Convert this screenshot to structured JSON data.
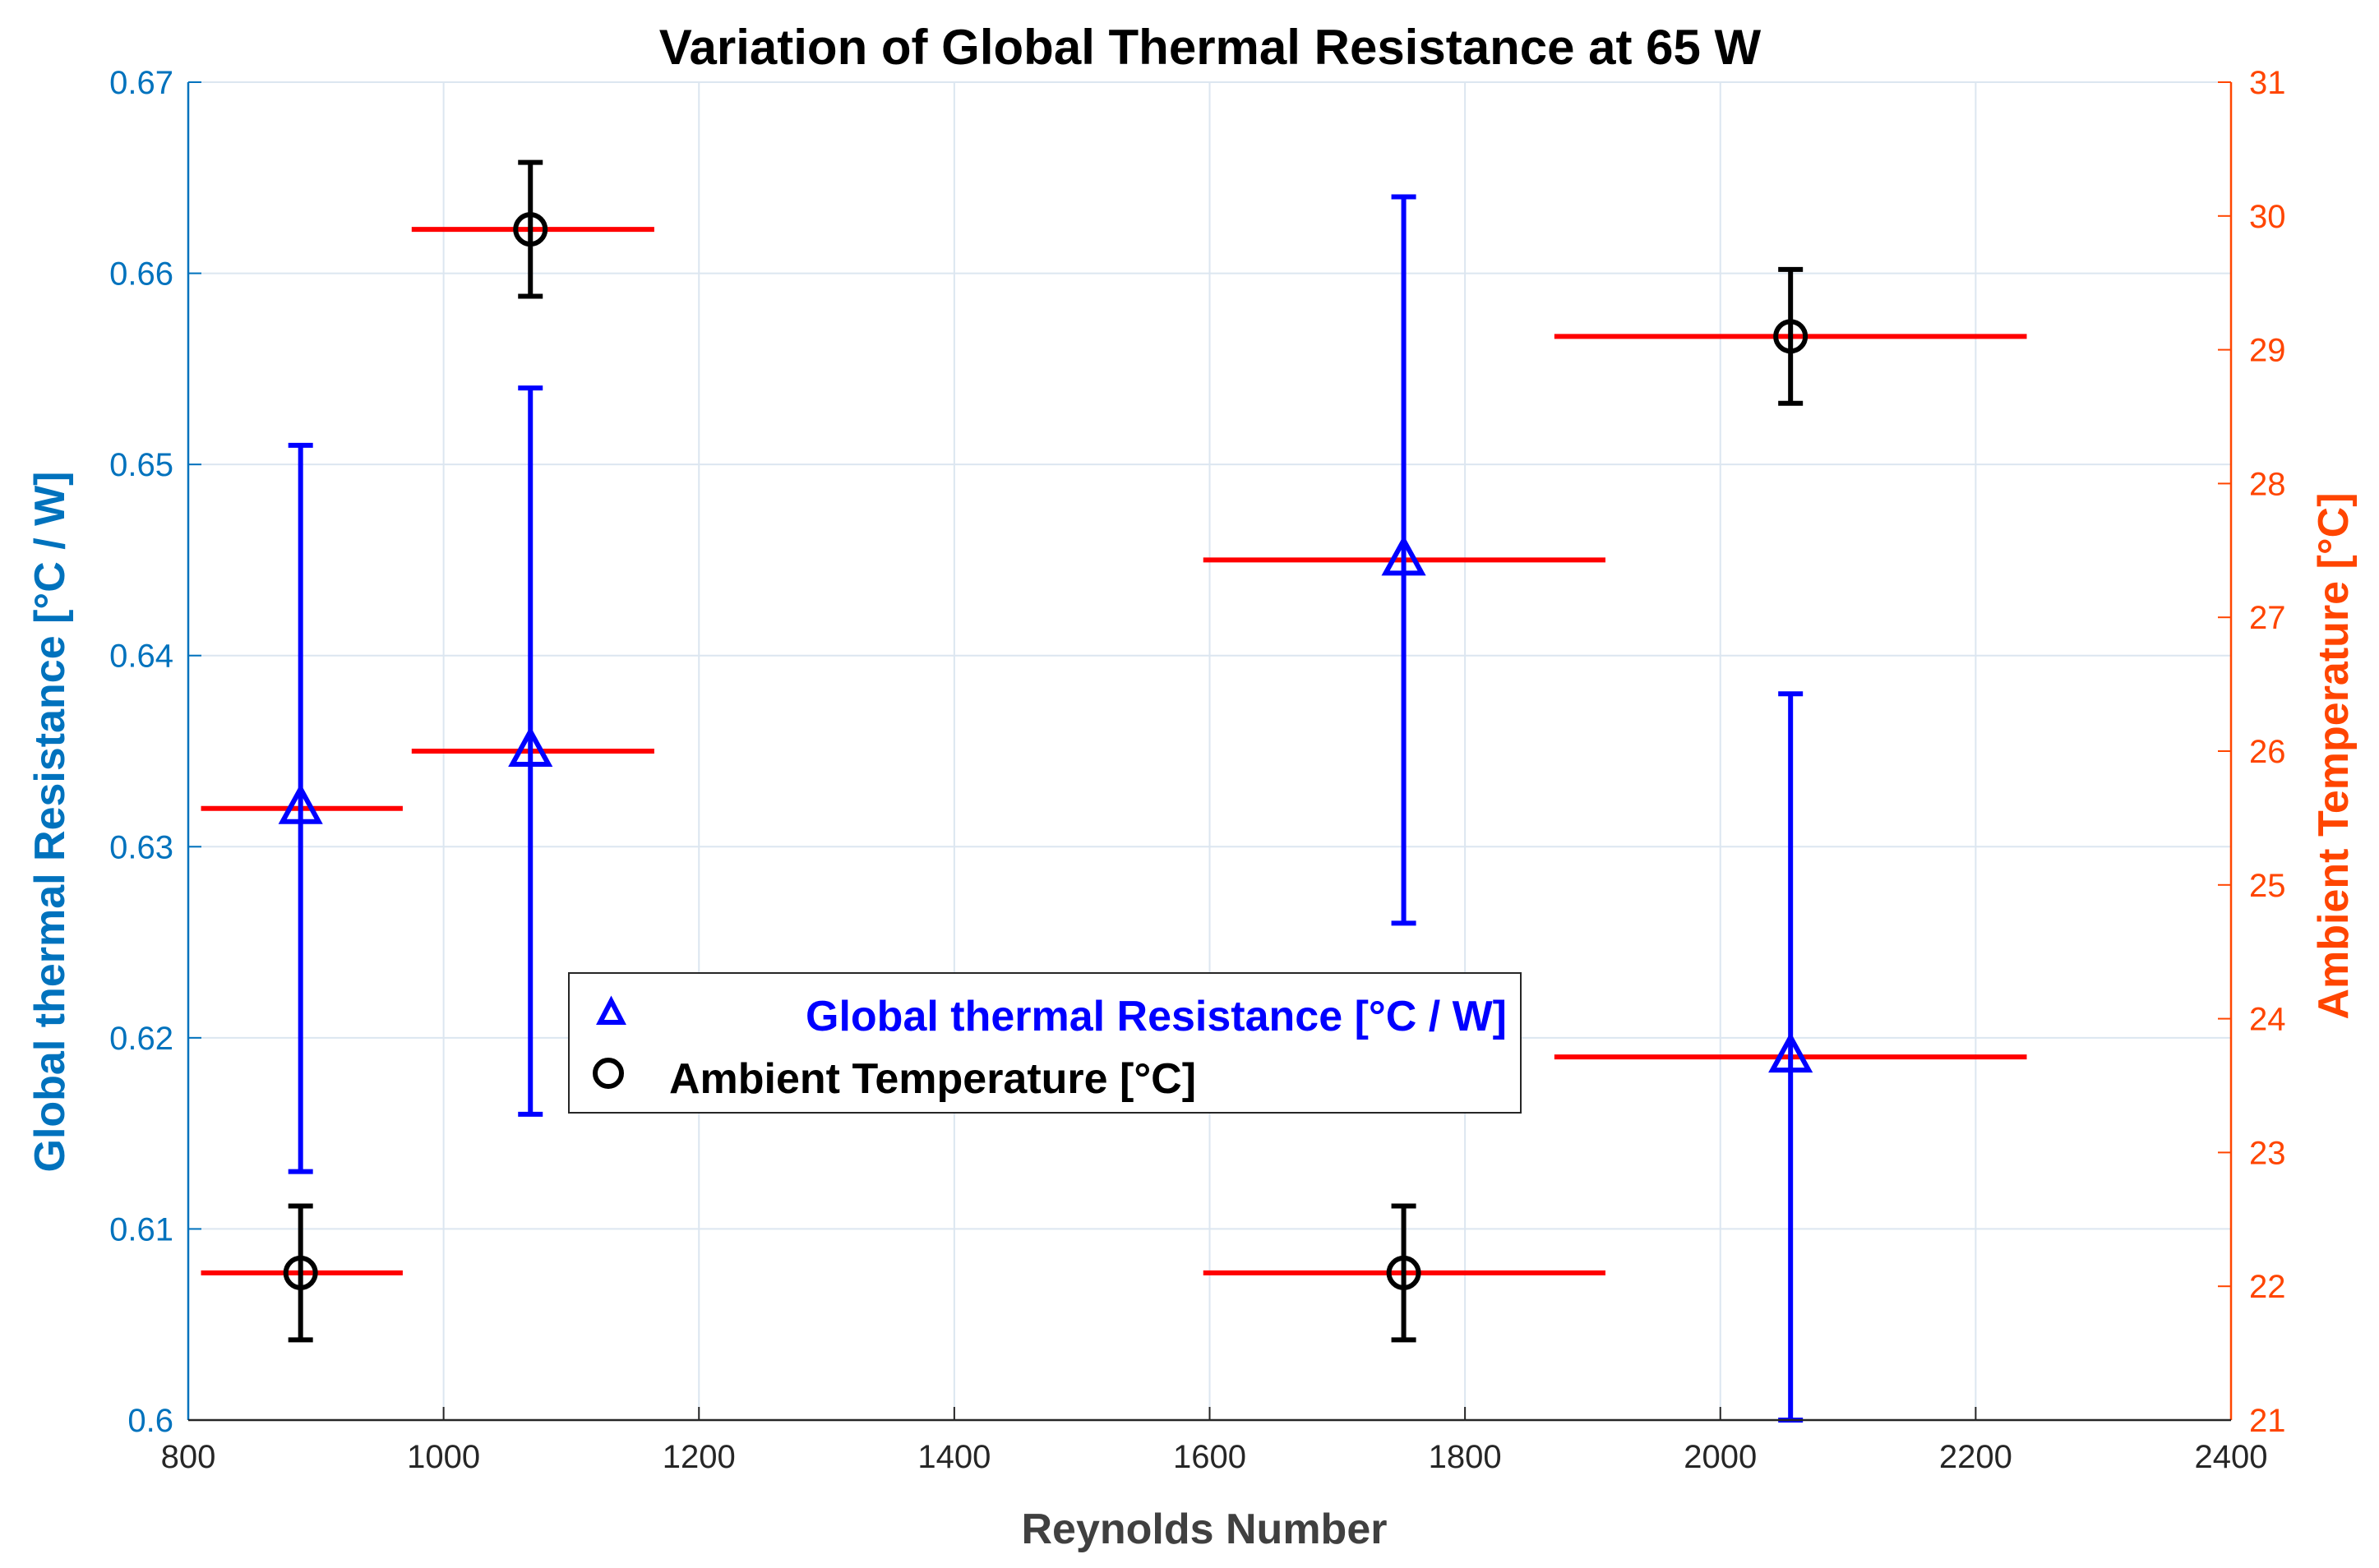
{
  "chart_data": {
    "type": "scatter",
    "title": "Variation of Global Thermal Resistance at 65 W",
    "xlabel": "Reynolds Number",
    "ylabel_left": "Global thermal Resistance [°C / W]",
    "ylabel_right": "Ambient Temperature [°C]",
    "xlim": [
      800,
      2400
    ],
    "ylim_left": [
      0.6,
      0.67
    ],
    "ylim_right": [
      21,
      31
    ],
    "x_ticks": [
      "800",
      "1000",
      "1200",
      "1400",
      "1600",
      "1800",
      "2000",
      "2200",
      "2400"
    ],
    "y_left_ticks": [
      "0.6",
      "0.61",
      "0.62",
      "0.63",
      "0.64",
      "0.65",
      "0.66",
      "0.67"
    ],
    "y_right_ticks": [
      "21",
      "22",
      "23",
      "24",
      "25",
      "26",
      "27",
      "28",
      "29",
      "30",
      "31"
    ],
    "grid": true,
    "legend_position": "center-left",
    "colors": {
      "left_axis": "#0072BD",
      "right_axis": "#FF4500",
      "resistance": "#0000FF",
      "temperature": "#000000",
      "x_error": "#FF0000",
      "grid": "#DCE6F0"
    },
    "series": [
      {
        "name": "Global thermal Resistance [°C / W]",
        "axis": "left",
        "marker": "triangle",
        "points": [
          {
            "x": 888,
            "y": 0.632,
            "y_low": 0.613,
            "y_high": 0.651,
            "x_low": 810,
            "x_high": 968
          },
          {
            "x": 1068,
            "y": 0.635,
            "y_low": 0.616,
            "y_high": 0.654,
            "x_low": 975,
            "x_high": 1165
          },
          {
            "x": 1752,
            "y": 0.645,
            "y_low": 0.626,
            "y_high": 0.664,
            "x_low": 1595,
            "x_high": 1910
          },
          {
            "x": 2055,
            "y": 0.619,
            "y_low": 0.6,
            "y_high": 0.638,
            "x_low": 1870,
            "x_high": 2240
          }
        ]
      },
      {
        "name": "Ambient Temperature [°C]",
        "axis": "right",
        "marker": "circle",
        "points": [
          {
            "x": 888,
            "y": 22.1,
            "y_low": 21.6,
            "y_high": 22.6,
            "x_low": 810,
            "x_high": 968
          },
          {
            "x": 1068,
            "y": 29.9,
            "y_low": 29.4,
            "y_high": 30.4,
            "x_low": 975,
            "x_high": 1165
          },
          {
            "x": 1752,
            "y": 22.1,
            "y_low": 21.6,
            "y_high": 22.6,
            "x_low": 1595,
            "x_high": 1910
          },
          {
            "x": 2055,
            "y": 29.1,
            "y_low": 28.6,
            "y_high": 29.6,
            "x_low": 1870,
            "x_high": 2240
          }
        ]
      }
    ]
  }
}
